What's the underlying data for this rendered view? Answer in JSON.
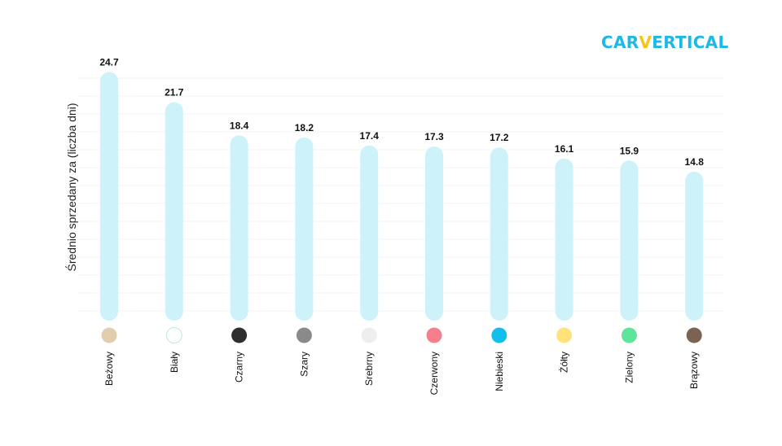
{
  "logo": {
    "part1": "CAR",
    "part2": "V",
    "part3": "ERTICAL"
  },
  "colors": {
    "bar": "#cdf2fa",
    "grid": "#f1f3f5",
    "logo_blue": "#1bb8e8",
    "logo_yellow": "#f5c518"
  },
  "chart_data": {
    "type": "bar",
    "title": "",
    "xlabel": "",
    "ylabel": "Średnio sprzedany za (liczba dni)",
    "ylim": [
      0,
      27
    ],
    "grid": true,
    "categories": [
      "Beżowy",
      "Biały",
      "Czarny",
      "Szary",
      "Srebrny",
      "Czerwony",
      "Niebieski",
      "Żółty",
      "Zielony",
      "Brązowy"
    ],
    "values": [
      24.7,
      21.7,
      18.4,
      18.2,
      17.4,
      17.3,
      17.2,
      16.1,
      15.9,
      14.8
    ],
    "value_labels": [
      "24.7",
      "21.7",
      "18.4",
      "18.2",
      "17.4",
      "17.3",
      "17.2",
      "16.1",
      "15.9",
      "14.8"
    ],
    "swatches": [
      "#e0ceae",
      "#ffffff",
      "#2f2f2f",
      "#8a8a8a",
      "#eeeeee",
      "#f57f8b",
      "#12bfec",
      "#ffe27a",
      "#5ee59a",
      "#7a6352"
    ]
  }
}
